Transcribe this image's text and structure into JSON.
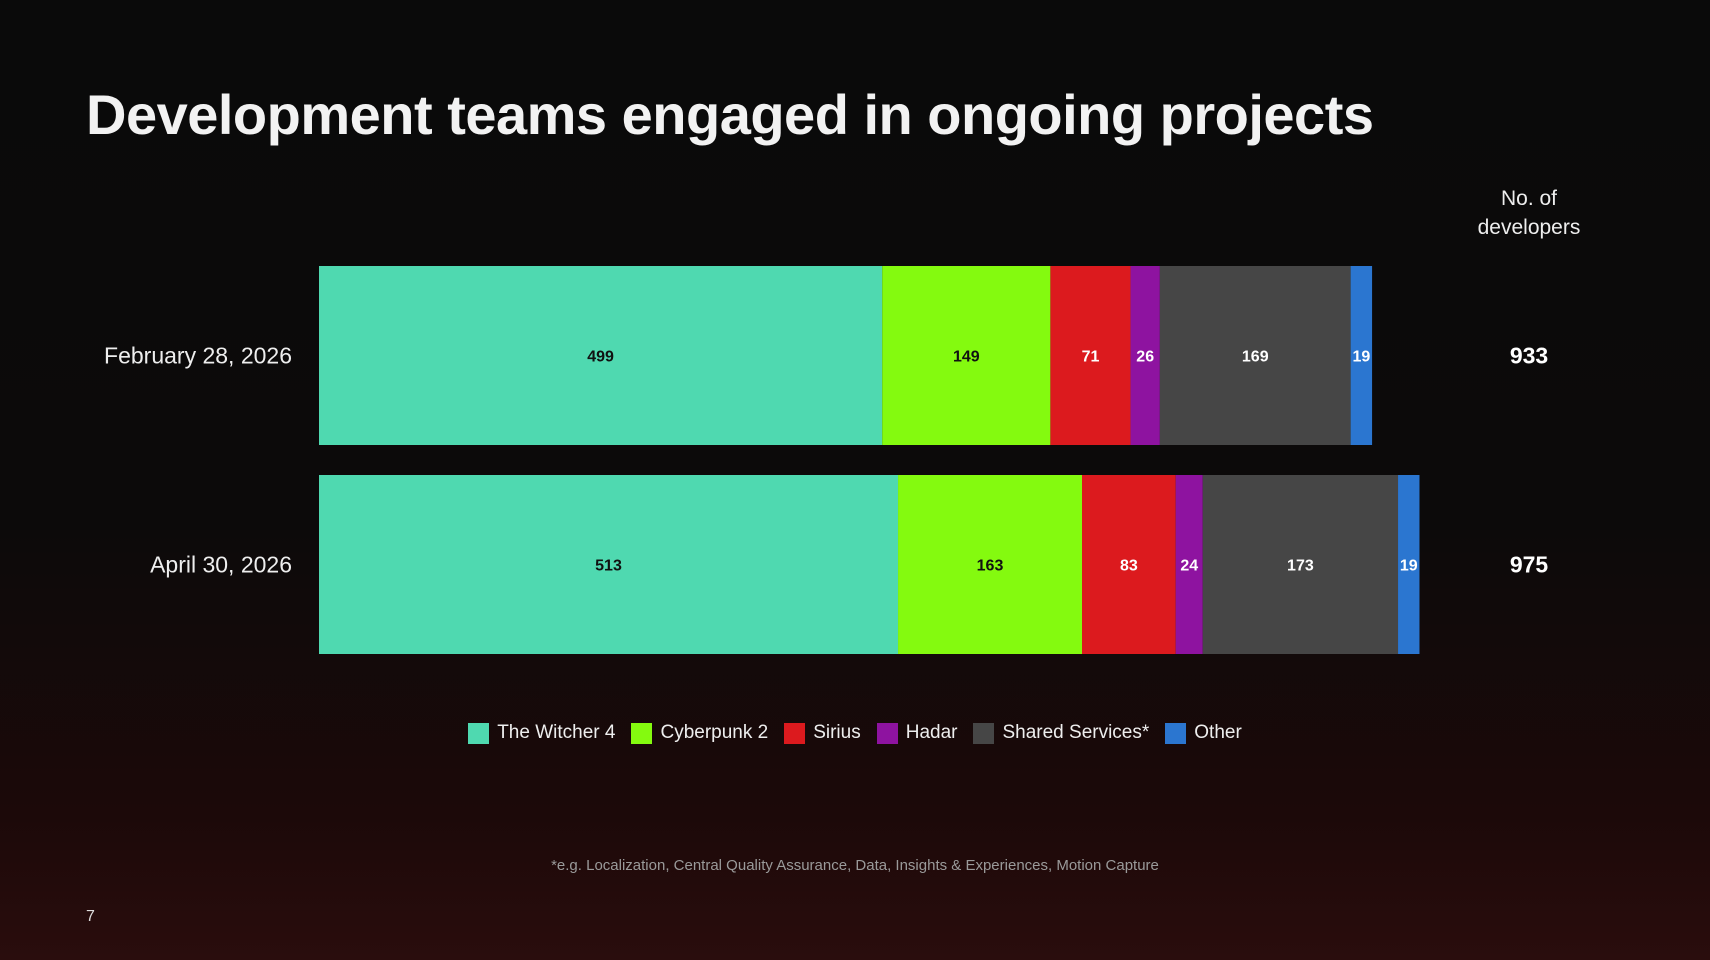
{
  "slide": {
    "title": "Development teams engaged in ongoing projects",
    "footnote": "*e.g. Localization, Central Quality Assurance, Data, Insights & Experiences, Motion Capture",
    "page_number": "7"
  },
  "chart_data": {
    "type": "bar",
    "orientation": "horizontal",
    "stacked": true,
    "categories": [
      "February 28, 2026",
      "April 30, 2026"
    ],
    "series": [
      {
        "name": "The Witcher 4",
        "color": "#4fd9b0",
        "label_color": "#111111",
        "values": [
          499,
          513
        ]
      },
      {
        "name": "Cyberpunk 2",
        "color": "#84fa0f",
        "label_color": "#111111",
        "values": [
          149,
          163
        ]
      },
      {
        "name": "Sirius",
        "color": "#dc1a1e",
        "label_color": "#ffffff",
        "values": [
          71,
          83
        ]
      },
      {
        "name": "Hadar",
        "color": "#8e13a0",
        "label_color": "#ffffff",
        "values": [
          26,
          24
        ]
      },
      {
        "name": "Shared Services*",
        "color": "#464646",
        "label_color": "#ffffff",
        "values": [
          169,
          173
        ]
      },
      {
        "name": "Other",
        "color": "#2b76d0",
        "label_color": "#ffffff",
        "values": [
          19,
          19
        ]
      }
    ],
    "totals_header": [
      "No. of",
      "developers"
    ],
    "totals": [
      933,
      975
    ],
    "legend_position": "bottom",
    "grid": false
  }
}
